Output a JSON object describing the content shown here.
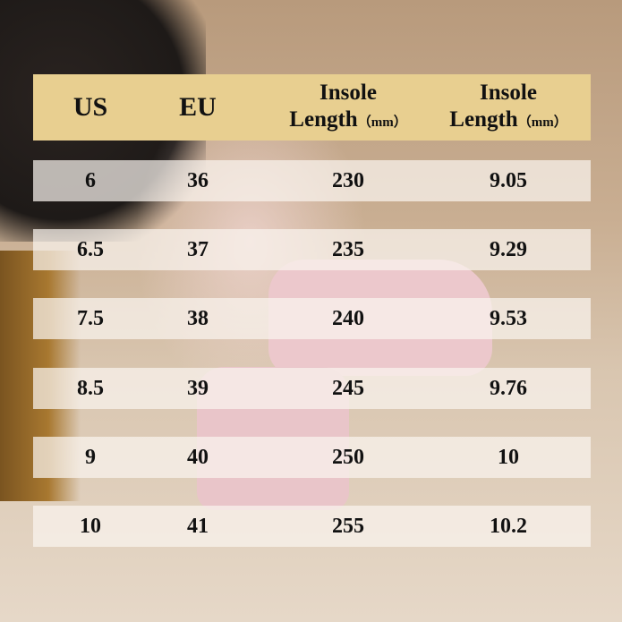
{
  "table": {
    "headers": [
      {
        "line1": "US"
      },
      {
        "line1": "EU"
      },
      {
        "line1": "Insole",
        "line2": "Length",
        "unit": "（mm）"
      },
      {
        "line1": "Insole",
        "line2": "Length",
        "unit": "（mm）"
      }
    ],
    "rows": [
      [
        "6",
        "36",
        "230",
        "9.05"
      ],
      [
        "6.5",
        "37",
        "235",
        "9.29"
      ],
      [
        "7.5",
        "38",
        "240",
        "9.53"
      ],
      [
        "8.5",
        "39",
        "245",
        "9.76"
      ],
      [
        "9",
        "40",
        "250",
        "10"
      ],
      [
        "10",
        "41",
        "255",
        "10.2"
      ]
    ]
  },
  "colors": {
    "header_bg": "#e8cf90",
    "row_bg": "#faf4ee"
  }
}
